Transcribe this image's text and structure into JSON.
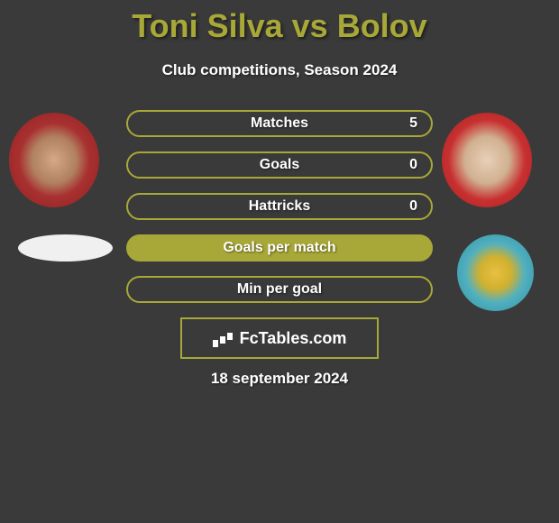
{
  "title": "Toni Silva vs Bolov",
  "subtitle": "Club competitions, Season 2024",
  "stats": [
    {
      "label": "Matches",
      "value_right": "5",
      "filled": false
    },
    {
      "label": "Goals",
      "value_right": "0",
      "filled": false
    },
    {
      "label": "Hattricks",
      "value_right": "0",
      "filled": false
    },
    {
      "label": "Goals per match",
      "value_right": "",
      "filled": true
    },
    {
      "label": "Min per goal",
      "value_right": "",
      "filled": false
    }
  ],
  "logo_text": "FcTables.com",
  "date": "18 september 2024",
  "colors": {
    "background": "#3a3a3a",
    "accent": "#a8a838",
    "text": "#ffffff"
  }
}
